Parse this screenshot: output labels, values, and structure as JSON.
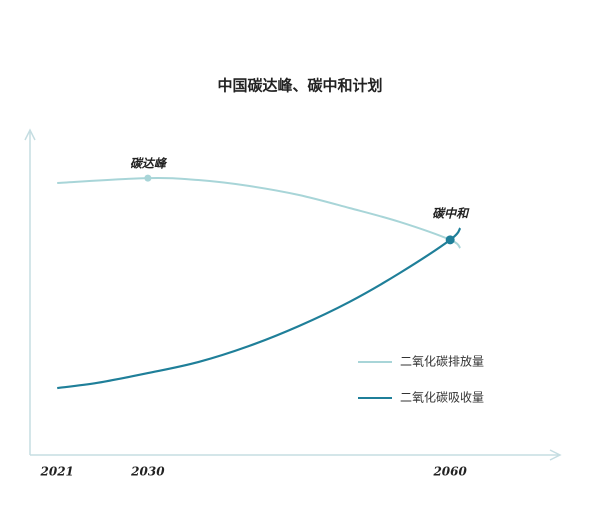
{
  "chart_data": {
    "type": "line",
    "title": "中国碳达峰、碳中和计划",
    "xlim": [
      2018.3,
      2070.9
    ],
    "ylim": [
      0,
      100
    ],
    "xticks": [
      2021,
      2030,
      2060
    ],
    "series": [
      {
        "name": "二氧化碳排放量",
        "color": "#a8d5d8",
        "x": [
          2021,
          2030,
          2035,
          2040,
          2045,
          2050,
          2055,
          2060,
          2061
        ],
        "values": [
          83.7,
          85.2,
          84.6,
          82.8,
          80,
          76,
          71.7,
          66.2,
          63.7
        ]
      },
      {
        "name": "二氧化碳吸收量",
        "color": "#1f7f99",
        "x": [
          2021,
          2025,
          2030,
          2035,
          2040,
          2045,
          2050,
          2055,
          2060,
          2061
        ],
        "values": [
          20.6,
          22.2,
          25.2,
          28.6,
          33.5,
          39.7,
          47.1,
          56,
          66.2,
          69.8
        ]
      }
    ],
    "annotations": [
      {
        "text": "碳达峰",
        "x": 2030,
        "y": 85.2
      },
      {
        "text": "碳中和",
        "x": 2060,
        "y": 66.2
      }
    ],
    "legend": "right"
  }
}
